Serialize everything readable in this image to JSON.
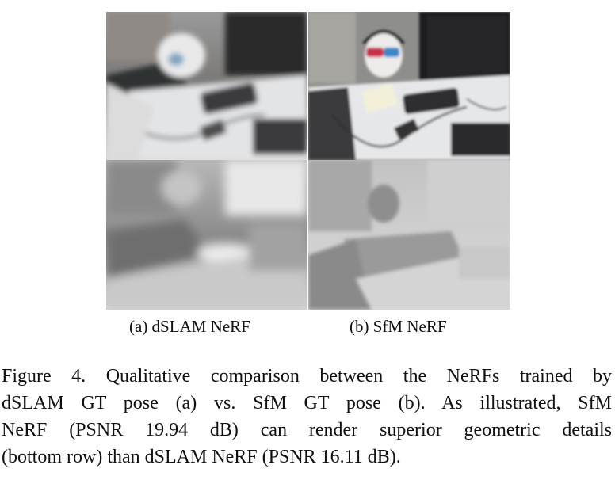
{
  "figure": {
    "subcaption_a": "(a) dSLAM NeRF",
    "subcaption_b": "(b) SfM NeRF"
  },
  "caption": {
    "lines": [
      "Figure 4.  Qualitative comparison between the NeRFs trained by",
      "dSLAM GT pose (a) vs.  SfM GT pose (b).  As illustrated, SfM",
      "NeRF (PSNR 19.94 dB) can render superior geometric details",
      "(bottom row) than dSLAM NeRF (PSNR 16.11 dB)."
    ]
  }
}
